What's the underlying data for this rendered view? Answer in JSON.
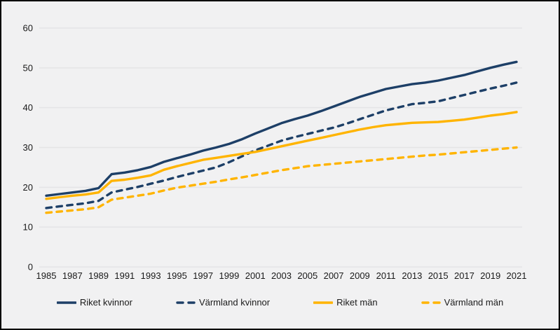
{
  "colors": {
    "background": "#f1f1f2",
    "gridline": "#e4e4e6",
    "axis_text": "#1a1a1a",
    "navy": "#1d3f67",
    "gold": "#ffb400",
    "frame": "#000000"
  },
  "chart_data": {
    "type": "line",
    "title": "",
    "xlabel": "",
    "ylabel": "",
    "x": [
      1985,
      1986,
      1987,
      1988,
      1989,
      1990,
      1991,
      1992,
      1993,
      1994,
      1995,
      1996,
      1997,
      1998,
      1999,
      2000,
      2001,
      2002,
      2003,
      2004,
      2005,
      2006,
      2007,
      2008,
      2009,
      2010,
      2011,
      2012,
      2013,
      2014,
      2015,
      2016,
      2017,
      2018,
      2019,
      2020,
      2021
    ],
    "x_tick_labels": [
      "1985",
      "1987",
      "1989",
      "1991",
      "1993",
      "1995",
      "1997",
      "1999",
      "2001",
      "2003",
      "2005",
      "2007",
      "2009",
      "2011",
      "2013",
      "2015",
      "2017",
      "2019",
      "2021"
    ],
    "y_ticks": [
      0,
      10,
      20,
      30,
      40,
      50,
      60
    ],
    "ylim": [
      0,
      65
    ],
    "grid": true,
    "legend_position": "bottom",
    "series": [
      {
        "name": "Riket kvinnor",
        "color": "#1d3f67",
        "dash": "solid",
        "values": [
          17.9,
          18.3,
          18.7,
          19.1,
          19.8,
          23.3,
          23.7,
          24.3,
          25.1,
          26.4,
          27.3,
          28.2,
          29.2,
          30.0,
          30.9,
          32.1,
          33.5,
          34.8,
          36.1,
          37.1,
          38.0,
          39.1,
          40.3,
          41.5,
          42.7,
          43.7,
          44.7,
          45.3,
          45.9,
          46.3,
          46.8,
          47.5,
          48.2,
          49.1,
          50.0,
          50.8,
          51.5
        ]
      },
      {
        "name": "Värmland kvinnor",
        "color": "#1d3f67",
        "dash": "dashed",
        "values": [
          14.8,
          15.2,
          15.6,
          16.0,
          16.6,
          18.7,
          19.4,
          20.1,
          20.9,
          21.7,
          22.6,
          23.4,
          24.2,
          25.0,
          26.3,
          27.8,
          29.3,
          30.5,
          31.7,
          32.6,
          33.4,
          34.2,
          35.0,
          36.0,
          37.1,
          38.2,
          39.3,
          40.1,
          40.9,
          41.2,
          41.6,
          42.4,
          43.2,
          44.0,
          44.8,
          45.5,
          46.3
        ]
      },
      {
        "name": "Riket män",
        "color": "#ffb400",
        "dash": "solid",
        "values": [
          17.1,
          17.5,
          17.9,
          18.2,
          18.7,
          21.6,
          21.9,
          22.4,
          23.0,
          24.4,
          25.3,
          26.1,
          26.9,
          27.4,
          27.9,
          28.4,
          28.9,
          29.6,
          30.3,
          31.0,
          31.7,
          32.4,
          33.1,
          33.8,
          34.5,
          35.1,
          35.6,
          35.9,
          36.2,
          36.3,
          36.4,
          36.7,
          37.0,
          37.5,
          38.0,
          38.4,
          38.9
        ]
      },
      {
        "name": "Värmland män",
        "color": "#ffb400",
        "dash": "dashed",
        "values": [
          13.6,
          13.9,
          14.2,
          14.5,
          15.0,
          16.9,
          17.4,
          17.9,
          18.4,
          19.2,
          19.9,
          20.4,
          20.9,
          21.4,
          22.0,
          22.5,
          23.1,
          23.7,
          24.3,
          24.8,
          25.3,
          25.6,
          25.9,
          26.2,
          26.5,
          26.8,
          27.1,
          27.4,
          27.7,
          28.0,
          28.2,
          28.5,
          28.8,
          29.1,
          29.4,
          29.7,
          30.0
        ]
      }
    ]
  }
}
